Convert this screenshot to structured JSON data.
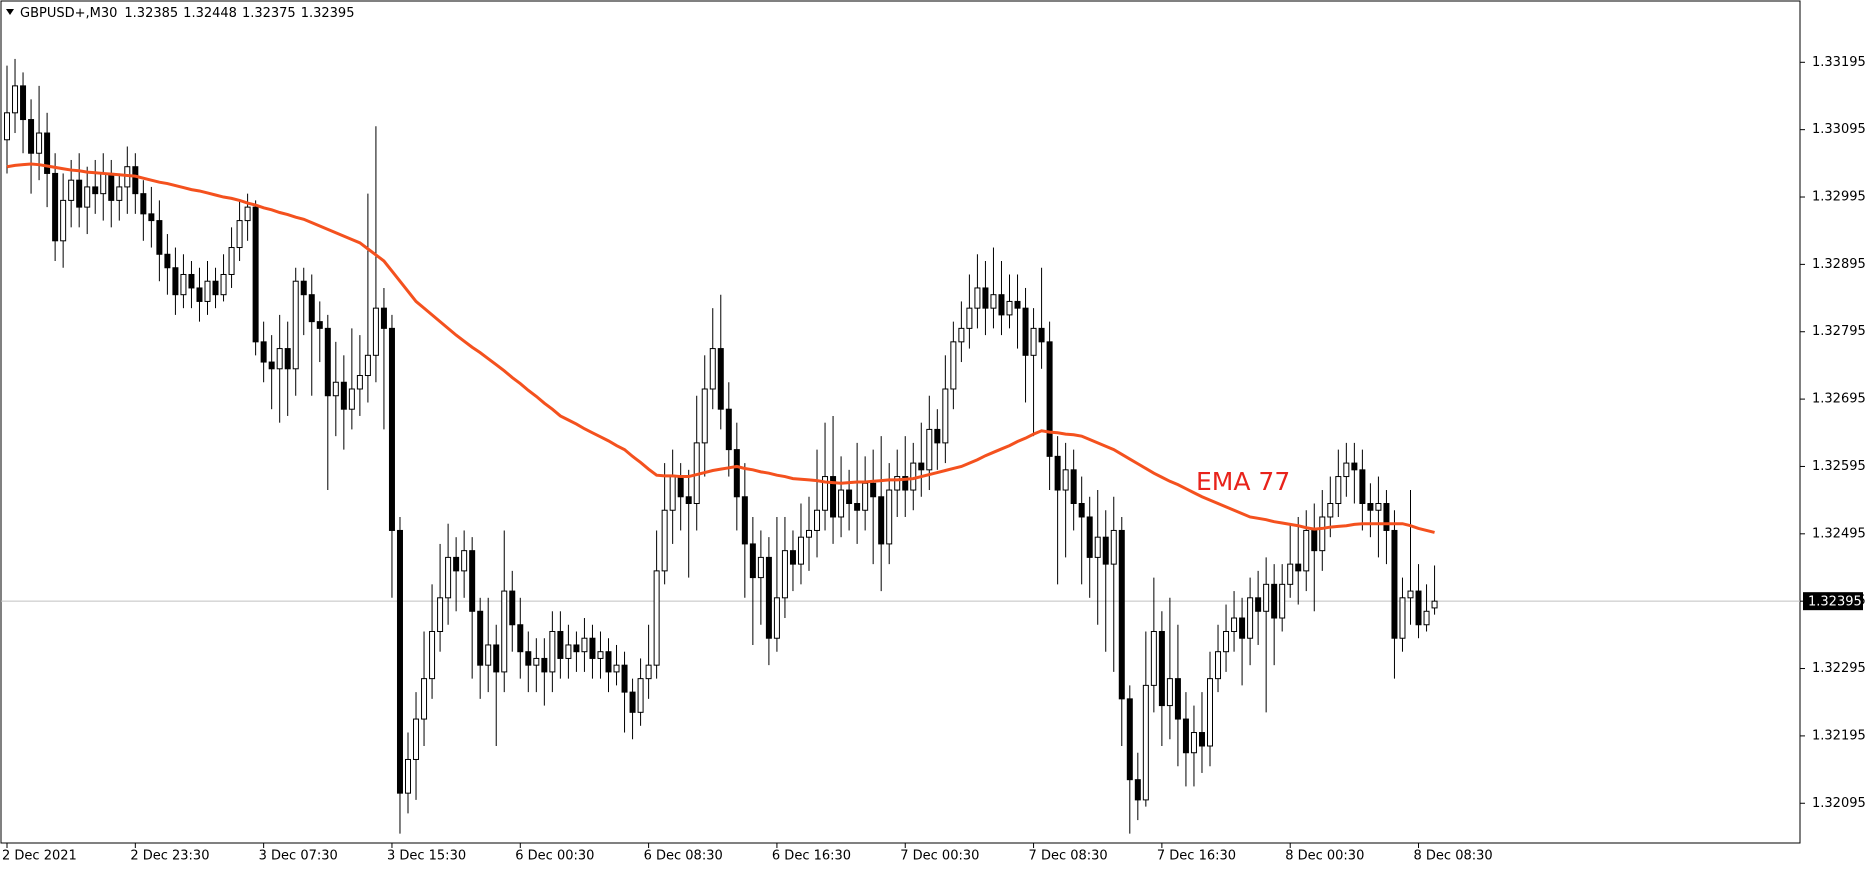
{
  "chart_data": {
    "type": "candlestick",
    "title": "GBPUSD+,M30",
    "categories": [
      "2 Dec 2021",
      null,
      null,
      null,
      null,
      null,
      null,
      null,
      null,
      null,
      null,
      null,
      null,
      null,
      null,
      null,
      "2 Dec 23:30",
      null,
      null,
      null,
      null,
      null,
      null,
      null,
      null,
      null,
      null,
      null,
      null,
      null,
      null,
      null,
      "3 Dec 07:30",
      null,
      null,
      null,
      null,
      null,
      null,
      null,
      null,
      null,
      null,
      null,
      null,
      null,
      null,
      null,
      "3 Dec 15:30",
      null,
      null,
      null,
      null,
      null,
      null,
      null,
      null,
      null,
      null,
      null,
      null,
      null,
      null,
      null,
      "6 Dec 00:30",
      null,
      null,
      null,
      null,
      null,
      null,
      null,
      null,
      null,
      null,
      null,
      null,
      null,
      null,
      null,
      "6 Dec 08:30",
      null,
      null,
      null,
      null,
      null,
      null,
      null,
      null,
      null,
      null,
      null,
      null,
      null,
      null,
      null,
      "6 Dec 16:30",
      null,
      null,
      null,
      null,
      null,
      null,
      null,
      null,
      null,
      null,
      null,
      null,
      null,
      null,
      null,
      "7 Dec 00:30",
      null,
      null,
      null,
      null,
      null,
      null,
      null,
      null,
      null,
      null,
      null,
      null,
      null,
      null,
      null,
      "7 Dec 08:30",
      null,
      null,
      null,
      null,
      null,
      null,
      null,
      null,
      null,
      null,
      null,
      null,
      null,
      null,
      null,
      "7 Dec 16:30",
      null,
      null,
      null,
      null,
      null,
      null,
      null,
      null,
      null,
      null,
      null,
      null,
      null,
      null,
      null,
      "8 Dec 00:30",
      null,
      null,
      null,
      null,
      null,
      null,
      null,
      null,
      null,
      null,
      null,
      null,
      null,
      null,
      null,
      "8 Dec 08:30",
      null,
      null
    ],
    "candles": {
      "open": [
        1.3308,
        1.3312,
        1.3316,
        1.3311,
        1.3306,
        1.3309,
        1.3303,
        1.3293,
        1.3299,
        1.3302,
        1.3298,
        1.3301,
        1.33,
        1.3303,
        1.3299,
        1.3301,
        1.3304,
        1.33,
        1.3297,
        1.3296,
        1.3291,
        1.3289,
        1.3285,
        1.3288,
        1.3286,
        1.3284,
        1.3287,
        1.3285,
        1.3288,
        1.3292,
        1.3296,
        1.3298,
        1.3278,
        1.3275,
        1.3274,
        1.3277,
        1.3274,
        1.3287,
        1.3285,
        1.3281,
        1.328,
        1.327,
        1.3272,
        1.3268,
        1.3271,
        1.3273,
        1.3276,
        1.3283,
        1.328,
        1.325,
        1.3211,
        1.3216,
        1.3222,
        1.3228,
        1.3235,
        1.324,
        1.3246,
        1.3244,
        1.3247,
        1.3238,
        1.323,
        1.3233,
        1.3229,
        1.3241,
        1.3236,
        1.3232,
        1.323,
        1.3231,
        1.3229,
        1.3235,
        1.3231,
        1.3233,
        1.3232,
        1.3234,
        1.3231,
        1.3232,
        1.3229,
        1.323,
        1.3226,
        1.3223,
        1.3228,
        1.323,
        1.3244,
        1.3253,
        1.3258,
        1.3255,
        1.3254,
        1.3263,
        1.3271,
        1.3277,
        1.3268,
        1.3262,
        1.3255,
        1.3248,
        1.3243,
        1.3246,
        1.3234,
        1.324,
        1.3247,
        1.3245,
        1.3249,
        1.325,
        1.3253,
        1.3258,
        1.3252,
        1.3256,
        1.3254,
        1.3253,
        1.3257,
        1.3255,
        1.3248,
        1.3256,
        1.3258,
        1.3256,
        1.326,
        1.3259,
        1.3265,
        1.3263,
        1.3271,
        1.3278,
        1.328,
        1.3283,
        1.3286,
        1.3283,
        1.3285,
        1.3282,
        1.3284,
        1.3283,
        1.3276,
        1.328,
        1.3278,
        1.3261,
        1.3256,
        1.3259,
        1.3254,
        1.3252,
        1.3246,
        1.3249,
        1.3245,
        1.325,
        1.3225,
        1.3213,
        1.321,
        1.3227,
        1.3235,
        1.3224,
        1.3228,
        1.3222,
        1.3217,
        1.322,
        1.3218,
        1.3228,
        1.3232,
        1.3235,
        1.3237,
        1.3234,
        1.324,
        1.3238,
        1.3242,
        1.3237,
        1.3242,
        1.3245,
        1.3244,
        1.325,
        1.3247,
        1.3252,
        1.3254,
        1.3258,
        1.326,
        1.3259,
        1.3254,
        1.3253,
        1.3254,
        1.325,
        1.3234,
        1.324,
        1.3241,
        1.3236,
        1.32385
      ],
      "high": [
        1.3319,
        1.332,
        1.3318,
        1.3314,
        1.3316,
        1.3312,
        1.3306,
        1.3303,
        1.3305,
        1.3306,
        1.3304,
        1.3305,
        1.3306,
        1.3305,
        1.3303,
        1.3307,
        1.3306,
        1.3302,
        1.3301,
        1.3299,
        1.3294,
        1.3292,
        1.3291,
        1.329,
        1.3289,
        1.329,
        1.3289,
        1.3291,
        1.3295,
        1.3299,
        1.33,
        1.3299,
        1.3281,
        1.3279,
        1.3282,
        1.3281,
        1.3289,
        1.3289,
        1.3288,
        1.3284,
        1.3282,
        1.3278,
        1.3276,
        1.328,
        1.3279,
        1.33,
        1.331,
        1.3286,
        1.3282,
        1.3252,
        1.322,
        1.3226,
        1.3235,
        1.3242,
        1.3248,
        1.3251,
        1.3249,
        1.325,
        1.3249,
        1.324,
        1.324,
        1.3236,
        1.325,
        1.3244,
        1.324,
        1.3235,
        1.3234,
        1.3234,
        1.3238,
        1.3238,
        1.3236,
        1.3235,
        1.3237,
        1.3236,
        1.3235,
        1.3234,
        1.3233,
        1.3232,
        1.3228,
        1.3231,
        1.3236,
        1.325,
        1.326,
        1.3262,
        1.326,
        1.3259,
        1.327,
        1.3276,
        1.3283,
        1.3285,
        1.3272,
        1.3266,
        1.326,
        1.3252,
        1.325,
        1.3249,
        1.3252,
        1.3252,
        1.325,
        1.3254,
        1.3255,
        1.3262,
        1.3266,
        1.3267,
        1.3261,
        1.3259,
        1.3263,
        1.3261,
        1.3262,
        1.3264,
        1.326,
        1.3262,
        1.3264,
        1.3263,
        1.3266,
        1.327,
        1.3268,
        1.3276,
        1.3281,
        1.3284,
        1.3288,
        1.3291,
        1.329,
        1.3292,
        1.329,
        1.3288,
        1.3288,
        1.3286,
        1.3283,
        1.3289,
        1.3281,
        1.3264,
        1.3263,
        1.3262,
        1.3258,
        1.3255,
        1.3256,
        1.3253,
        1.3255,
        1.3252,
        1.3227,
        1.3217,
        1.3235,
        1.3243,
        1.3238,
        1.324,
        1.3236,
        1.3226,
        1.3224,
        1.3226,
        1.3232,
        1.3236,
        1.3239,
        1.3241,
        1.324,
        1.3243,
        1.3244,
        1.3246,
        1.3245,
        1.3245,
        1.3251,
        1.3252,
        1.3253,
        1.3254,
        1.3256,
        1.3258,
        1.3262,
        1.3263,
        1.3263,
        1.3262,
        1.3257,
        1.3258,
        1.3256,
        1.3253,
        1.3243,
        1.3256,
        1.3245,
        1.3242,
        1.32448
      ],
      "low": [
        1.3303,
        1.3309,
        1.3306,
        1.33,
        1.3302,
        1.3298,
        1.329,
        1.3289,
        1.3295,
        1.3295,
        1.3294,
        1.3297,
        1.3296,
        1.3295,
        1.3296,
        1.3297,
        1.3297,
        1.3293,
        1.3292,
        1.3287,
        1.3285,
        1.3282,
        1.3283,
        1.3283,
        1.3281,
        1.3282,
        1.3283,
        1.3284,
        1.3286,
        1.329,
        1.3293,
        1.3276,
        1.3272,
        1.3268,
        1.3266,
        1.3267,
        1.327,
        1.3279,
        1.327,
        1.3275,
        1.3256,
        1.3264,
        1.3262,
        1.3265,
        1.3267,
        1.3269,
        1.3272,
        1.3265,
        1.324,
        1.3205,
        1.3208,
        1.321,
        1.3218,
        1.3225,
        1.3232,
        1.3236,
        1.3238,
        1.324,
        1.3228,
        1.3225,
        1.3226,
        1.3218,
        1.3226,
        1.3232,
        1.3228,
        1.3226,
        1.3226,
        1.3224,
        1.3226,
        1.3228,
        1.3228,
        1.3229,
        1.3229,
        1.3228,
        1.3228,
        1.3226,
        1.3227,
        1.322,
        1.3219,
        1.3221,
        1.3225,
        1.3228,
        1.3242,
        1.3248,
        1.325,
        1.3243,
        1.325,
        1.3258,
        1.3268,
        1.3265,
        1.3258,
        1.325,
        1.324,
        1.3233,
        1.3236,
        1.323,
        1.3232,
        1.3237,
        1.3241,
        1.3242,
        1.3244,
        1.3246,
        1.325,
        1.3248,
        1.3249,
        1.325,
        1.3248,
        1.325,
        1.3245,
        1.3241,
        1.3245,
        1.3252,
        1.3252,
        1.3253,
        1.3255,
        1.3256,
        1.3259,
        1.326,
        1.3268,
        1.3275,
        1.3277,
        1.328,
        1.3279,
        1.328,
        1.3279,
        1.328,
        1.3277,
        1.3269,
        1.3264,
        1.3274,
        1.3256,
        1.3242,
        1.3246,
        1.325,
        1.3242,
        1.324,
        1.3236,
        1.3232,
        1.3229,
        1.3218,
        1.3205,
        1.3207,
        1.3209,
        1.3223,
        1.3218,
        1.3219,
        1.3215,
        1.3212,
        1.3212,
        1.3214,
        1.3215,
        1.3226,
        1.3229,
        1.3232,
        1.3227,
        1.323,
        1.3233,
        1.3223,
        1.323,
        1.3235,
        1.324,
        1.3239,
        1.3241,
        1.3238,
        1.3244,
        1.3249,
        1.3252,
        1.3255,
        1.3254,
        1.325,
        1.3249,
        1.3246,
        1.3245,
        1.3228,
        1.3232,
        1.3236,
        1.3234,
        1.3235,
        1.32375
      ],
      "close": [
        1.3312,
        1.3316,
        1.3311,
        1.3306,
        1.3309,
        1.3303,
        1.3293,
        1.3299,
        1.3302,
        1.3298,
        1.3301,
        1.33,
        1.3303,
        1.3299,
        1.3301,
        1.3304,
        1.33,
        1.3297,
        1.3296,
        1.3291,
        1.3289,
        1.3285,
        1.3288,
        1.3286,
        1.3284,
        1.3287,
        1.3285,
        1.3288,
        1.3292,
        1.3296,
        1.3298,
        1.3278,
        1.3275,
        1.3274,
        1.3277,
        1.3274,
        1.3287,
        1.3285,
        1.3281,
        1.328,
        1.327,
        1.3272,
        1.3268,
        1.3271,
        1.3273,
        1.3276,
        1.3283,
        1.328,
        1.325,
        1.3211,
        1.3216,
        1.3222,
        1.3228,
        1.3235,
        1.324,
        1.3246,
        1.3244,
        1.3247,
        1.3238,
        1.323,
        1.3233,
        1.3229,
        1.3241,
        1.3236,
        1.3232,
        1.323,
        1.3231,
        1.3229,
        1.3235,
        1.3231,
        1.3233,
        1.3232,
        1.3234,
        1.3231,
        1.3232,
        1.3229,
        1.323,
        1.3226,
        1.3223,
        1.3228,
        1.323,
        1.3244,
        1.3253,
        1.3258,
        1.3255,
        1.3254,
        1.3263,
        1.3271,
        1.3277,
        1.3268,
        1.3262,
        1.3255,
        1.3248,
        1.3243,
        1.3246,
        1.3234,
        1.324,
        1.3247,
        1.3245,
        1.3249,
        1.325,
        1.3253,
        1.3258,
        1.3252,
        1.3256,
        1.3254,
        1.3253,
        1.3257,
        1.3255,
        1.3248,
        1.3256,
        1.3258,
        1.3256,
        1.326,
        1.3259,
        1.3265,
        1.3263,
        1.3271,
        1.3278,
        1.328,
        1.3283,
        1.3286,
        1.3283,
        1.3285,
        1.3282,
        1.3284,
        1.3283,
        1.3276,
        1.328,
        1.3278,
        1.3261,
        1.3256,
        1.3259,
        1.3254,
        1.3252,
        1.3246,
        1.3249,
        1.3245,
        1.325,
        1.3225,
        1.3213,
        1.321,
        1.3227,
        1.3235,
        1.3224,
        1.3228,
        1.3222,
        1.3217,
        1.322,
        1.3218,
        1.3228,
        1.3232,
        1.3235,
        1.3237,
        1.3234,
        1.324,
        1.3238,
        1.3242,
        1.3237,
        1.3242,
        1.3245,
        1.3244,
        1.325,
        1.3247,
        1.3252,
        1.3254,
        1.3258,
        1.326,
        1.3259,
        1.3254,
        1.3253,
        1.3254,
        1.325,
        1.3234,
        1.324,
        1.3241,
        1.3236,
        1.3238,
        1.32395
      ]
    },
    "up_color": "#ffffff",
    "down_color": "#000000",
    "series": [
      {
        "name": "EMA 77",
        "color": "#f4511e",
        "values": [
          1.3304,
          1.33042,
          1.33043,
          1.33044,
          1.33043,
          1.33041,
          1.33039,
          1.33037,
          1.33035,
          1.33034,
          1.33032,
          1.33031,
          1.3303,
          1.33029,
          1.33028,
          1.33027,
          1.33026,
          1.33023,
          1.3302,
          1.33017,
          1.33015,
          1.33012,
          1.33009,
          1.33006,
          1.33004,
          1.33001,
          1.32998,
          1.32995,
          1.32993,
          1.3299,
          1.32986,
          1.32983,
          1.32979,
          1.32976,
          1.32972,
          1.32969,
          1.32965,
          1.32962,
          1.32957,
          1.32952,
          1.32947,
          1.32942,
          1.32937,
          1.32932,
          1.32927,
          1.32918,
          1.32909,
          1.329,
          1.32885,
          1.3287,
          1.32855,
          1.3284,
          1.3283,
          1.3282,
          1.3281,
          1.328,
          1.3279,
          1.32781,
          1.32772,
          1.32764,
          1.32755,
          1.32746,
          1.32737,
          1.32727,
          1.32718,
          1.32708,
          1.32699,
          1.32689,
          1.3268,
          1.3267,
          1.32664,
          1.32658,
          1.32651,
          1.32645,
          1.32639,
          1.32633,
          1.32626,
          1.3262,
          1.3261,
          1.32601,
          1.32591,
          1.32582,
          1.32581,
          1.32581,
          1.3258,
          1.3258,
          1.32583,
          1.32586,
          1.32589,
          1.32591,
          1.32593,
          1.32595,
          1.32592,
          1.3259,
          1.32587,
          1.32585,
          1.32582,
          1.3258,
          1.32577,
          1.32576,
          1.32575,
          1.32574,
          1.32572,
          1.32571,
          1.3257,
          1.32571,
          1.32572,
          1.32572,
          1.32573,
          1.32574,
          1.32575,
          1.32575,
          1.32576,
          1.32577,
          1.3258,
          1.32583,
          1.32586,
          1.32589,
          1.32592,
          1.32595,
          1.326,
          1.32605,
          1.32611,
          1.32616,
          1.32621,
          1.32626,
          1.32632,
          1.32637,
          1.32643,
          1.32648,
          1.32646,
          1.32645,
          1.32643,
          1.32642,
          1.3264,
          1.32635,
          1.3263,
          1.32625,
          1.3262,
          1.32613,
          1.32606,
          1.32599,
          1.32592,
          1.32585,
          1.32579,
          1.32573,
          1.32568,
          1.32562,
          1.32556,
          1.3255,
          1.32545,
          1.3254,
          1.32535,
          1.3253,
          1.32525,
          1.3252,
          1.32518,
          1.32516,
          1.32513,
          1.32511,
          1.32509,
          1.32507,
          1.32504,
          1.32502,
          1.32503,
          1.32505,
          1.32506,
          1.32507,
          1.32509,
          1.3251,
          1.3251,
          1.3251,
          1.3251,
          1.3251,
          1.3251,
          1.32507,
          1.32503,
          1.325,
          1.32497
        ]
      }
    ],
    "ylim": [
      1.32036,
      1.33286
    ],
    "yticks": [
      1.32095,
      1.32195,
      1.32295,
      1.32395,
      1.32495,
      1.32595,
      1.32695,
      1.32795,
      1.32895,
      1.32995,
      1.33095,
      1.33195
    ],
    "grid": false
  }
}
